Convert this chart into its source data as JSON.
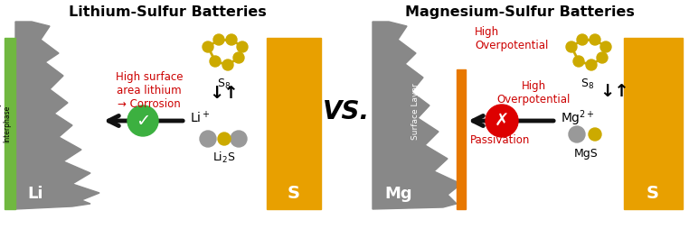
{
  "title_left": "Lithium-Sulfur Batteries",
  "title_right": "Magnesium-Sulfur Batteries",
  "vs_text": "VS.",
  "bg_color": "#ffffff",
  "gray_color": "#888888",
  "green_color": "#3cb040",
  "red_color": "#dd0000",
  "sulfur_color": "#ccaa00",
  "li2s_gray": "#999999",
  "arrow_color": "#111111",
  "sei_green": "#70b840",
  "text_red": "#cc0000",
  "orange_strip": "#e87800",
  "sulfur_electrode": "#e8a000",
  "title_fontsize": 11.5,
  "label_fontsize": 9
}
